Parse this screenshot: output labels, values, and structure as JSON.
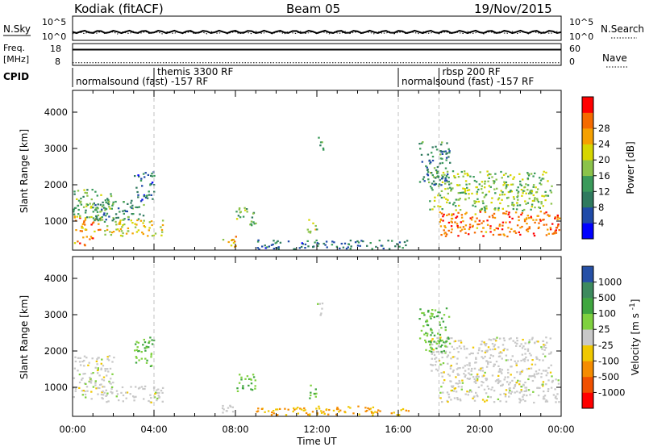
{
  "header": {
    "station": "Kodiak (fitACF)",
    "beam": "Beam 05",
    "date": "19/Nov/2015"
  },
  "status_panel": {
    "nsky_label": "N.Sky",
    "nsearch_label": "N.Search",
    "freq_label_line1": "Freq.",
    "freq_label_line2": "[MHz]",
    "nave_label": "Nave",
    "cpid_label": "CPID",
    "noise_ticks": [
      "10^5",
      "10^0"
    ],
    "noise_ticks_right": [
      "10^5",
      "10^0"
    ],
    "freq_ticks": [
      "18",
      "8"
    ],
    "nave_ticks": [
      "60",
      "0"
    ],
    "cpid_entries": [
      {
        "label": "normalsound (fast) -157 RF",
        "start_hour": 0,
        "row": 2
      },
      {
        "label": "themis 3300 RF",
        "start_hour": 4,
        "row": 1
      },
      {
        "label": "normalsound (fast) -157 RF",
        "start_hour": 16,
        "row": 2
      },
      {
        "label": "rbsp 200 RF",
        "start_hour": 18,
        "row": 1
      }
    ],
    "noise_level": 0.35,
    "freq_level": 0.72,
    "nave_level": 0.12
  },
  "chart_data": [
    {
      "type": "heatmap",
      "title": "",
      "xlabel": "Time UT",
      "ylabel": "Slant Range [km]",
      "xlim": [
        0,
        24
      ],
      "ylim": [
        200,
        4600
      ],
      "x_ticks": [
        "00:00",
        "04:00",
        "08:00",
        "12:00",
        "16:00",
        "20:00",
        "00:00"
      ],
      "y_ticks": [
        1000,
        2000,
        3000,
        4000
      ],
      "colorbar": {
        "label": "Power [dB]",
        "range": [
          0,
          32
        ],
        "ticks": [
          4,
          8,
          12,
          16,
          20,
          24,
          28
        ],
        "colors": [
          "#0000ff",
          "#1f4aa8",
          "#2f7a5e",
          "#3a9a5a",
          "#8bc34a",
          "#d6d600",
          "#f5a000",
          "#f56a00",
          "#ff0000"
        ]
      },
      "mode_change_hours": [
        4,
        16,
        18
      ],
      "echo_regions": [
        {
          "t0": 0.0,
          "t1": 1.5,
          "r0": 700,
          "r1": 1150,
          "v": 24
        },
        {
          "t0": 0.0,
          "t1": 2.0,
          "r0": 1100,
          "r1": 1900,
          "v": 14
        },
        {
          "t0": 0.0,
          "t1": 1.0,
          "r0": 350,
          "r1": 600,
          "v": 26
        },
        {
          "t0": 1.5,
          "t1": 4.5,
          "r0": 600,
          "r1": 1050,
          "v": 20
        },
        {
          "t0": 1.0,
          "t1": 3.5,
          "r0": 1000,
          "r1": 1600,
          "v": 10
        },
        {
          "t0": 3.0,
          "t1": 4.0,
          "r0": 1600,
          "r1": 2400,
          "v": 8
        },
        {
          "t0": 7.2,
          "t1": 8.0,
          "r0": 300,
          "r1": 600,
          "v": 22
        },
        {
          "t0": 8.0,
          "t1": 9.0,
          "r0": 900,
          "r1": 1400,
          "v": 14
        },
        {
          "t0": 11.5,
          "t1": 12.0,
          "r0": 700,
          "r1": 1100,
          "v": 18
        },
        {
          "t0": 12.0,
          "t1": 12.3,
          "r0": 2900,
          "r1": 3350,
          "v": 12
        },
        {
          "t0": 9.0,
          "t1": 16.5,
          "r0": 250,
          "r1": 500,
          "v": 8
        },
        {
          "t0": 18.0,
          "t1": 23.9,
          "r0": 600,
          "r1": 1300,
          "v": 26
        },
        {
          "t0": 17.5,
          "t1": 23.5,
          "r0": 1300,
          "r1": 2400,
          "v": 16
        },
        {
          "t0": 17.0,
          "t1": 18.5,
          "r0": 2000,
          "r1": 3200,
          "v": 10
        }
      ]
    },
    {
      "type": "heatmap",
      "title": "",
      "xlabel": "Time UT",
      "ylabel": "Slant Range [km]",
      "xlim": [
        0,
        24
      ],
      "ylim": [
        200,
        4600
      ],
      "x_ticks": [
        "00:00",
        "04:00",
        "08:00",
        "12:00",
        "16:00",
        "20:00",
        "00:00"
      ],
      "y_ticks": [
        1000,
        2000,
        3000,
        4000
      ],
      "colorbar": {
        "label": "Velocity [m s^-1]",
        "ticks": [
          "1000",
          "500",
          "100",
          "25",
          "-25",
          "-100",
          "-500",
          "-1000"
        ],
        "colors": [
          "#2650a6",
          "#3d8a5e",
          "#3fa63f",
          "#7fd13f",
          "#c8c8c8",
          "#f0c800",
          "#f58c00",
          "#f05000",
          "#ff0000"
        ]
      },
      "mode_change_hours": [
        4,
        16,
        18
      ],
      "echo_regions": [
        {
          "t0": 0.0,
          "t1": 1.5,
          "r0": 700,
          "r1": 1150,
          "v": 0
        },
        {
          "t0": 0.0,
          "t1": 2.0,
          "r0": 1100,
          "r1": 1900,
          "v": 0
        },
        {
          "t0": 1.5,
          "t1": 4.5,
          "r0": 600,
          "r1": 1050,
          "v": 0
        },
        {
          "t0": 3.0,
          "t1": 4.0,
          "r0": 1600,
          "r1": 2400,
          "v": 60
        },
        {
          "t0": 7.2,
          "t1": 8.0,
          "r0": 300,
          "r1": 600,
          "v": 0
        },
        {
          "t0": 8.0,
          "t1": 9.0,
          "r0": 900,
          "r1": 1400,
          "v": 60
        },
        {
          "t0": 11.5,
          "t1": 12.0,
          "r0": 700,
          "r1": 1100,
          "v": 60
        },
        {
          "t0": 12.0,
          "t1": 12.3,
          "r0": 2900,
          "r1": 3350,
          "v": 0
        },
        {
          "t0": 9.0,
          "t1": 16.5,
          "r0": 250,
          "r1": 500,
          "v": -60
        },
        {
          "t0": 18.0,
          "t1": 23.9,
          "r0": 600,
          "r1": 1300,
          "v": 0
        },
        {
          "t0": 17.5,
          "t1": 23.5,
          "r0": 1300,
          "r1": 2400,
          "v": 0
        },
        {
          "t0": 17.0,
          "t1": 18.5,
          "r0": 2000,
          "r1": 3200,
          "v": 60
        }
      ]
    }
  ]
}
